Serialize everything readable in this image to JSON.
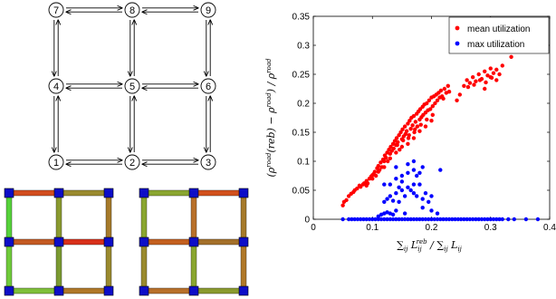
{
  "graph": {
    "nodes": [
      {
        "id": "1",
        "col": 0,
        "row": 2
      },
      {
        "id": "2",
        "col": 1,
        "row": 2
      },
      {
        "id": "3",
        "col": 2,
        "row": 2
      },
      {
        "id": "4",
        "col": 0,
        "row": 1
      },
      {
        "id": "5",
        "col": 1,
        "row": 1
      },
      {
        "id": "6",
        "col": 2,
        "row": 1
      },
      {
        "id": "7",
        "col": 0,
        "row": 0
      },
      {
        "id": "8",
        "col": 1,
        "row": 0
      },
      {
        "id": "9",
        "col": 2,
        "row": 0
      }
    ],
    "edges": [
      [
        "1",
        "2"
      ],
      [
        "2",
        "3"
      ],
      [
        "4",
        "5"
      ],
      [
        "5",
        "6"
      ],
      [
        "7",
        "8"
      ],
      [
        "8",
        "9"
      ],
      [
        "1",
        "4"
      ],
      [
        "4",
        "7"
      ],
      [
        "2",
        "5"
      ],
      [
        "5",
        "8"
      ],
      [
        "3",
        "6"
      ],
      [
        "6",
        "9"
      ]
    ]
  },
  "heatmaps": [
    {
      "h_edges": [
        [
          "#d24d1e",
          "#9a8a2e"
        ],
        [
          "#c45a22",
          "#d8301a"
        ],
        [
          "#7fbf3a",
          "#b07828"
        ]
      ],
      "v_edges": [
        [
          "#55d23a",
          "#8a9a2e",
          "#a67a2a"
        ],
        [
          "#6fcb3a",
          "#7a9a30",
          "#9a8a2e"
        ]
      ],
      "node_color": "#0d0dc8"
    },
    {
      "h_edges": [
        [
          "#8aa630",
          "#d2501c"
        ],
        [
          "#c4601f",
          "#a4702a"
        ],
        [
          "#b8702a",
          "#8a9a2e"
        ]
      ],
      "v_edges": [
        [
          "#8aa630",
          "#b8702a",
          "#a67a2a"
        ],
        [
          "#9a8a2e",
          "#8aa630",
          "#b07828"
        ]
      ],
      "node_color": "#0d0dc8"
    }
  ],
  "chart_data": {
    "type": "scatter",
    "xlim": [
      0,
      0.4
    ],
    "ylim": [
      0,
      0.35
    ],
    "x_ticks": [
      "0",
      "0.1",
      "0.2",
      "0.3",
      "0.4"
    ],
    "y_ticks": [
      "0",
      "0.05",
      "0.1",
      "0.15",
      "0.2",
      "0.25",
      "0.3",
      "0.35"
    ],
    "x_tick_values": [
      0,
      0.1,
      0.2,
      0.3,
      0.4
    ],
    "y_tick_values": [
      0,
      0.05,
      0.1,
      0.15,
      0.2,
      0.25,
      0.3,
      0.35
    ],
    "xlabel": "∑ij Lij^reb / ∑ij Lij",
    "ylabel": "(ρ^road(reb) − ρ^road) / ρ^road",
    "legend_position": "top-right",
    "grid": false,
    "series": [
      {
        "name": "mean utilization",
        "color": "#ff0000",
        "points": [
          [
            0.05,
            0.024
          ],
          [
            0.052,
            0.03
          ],
          [
            0.056,
            0.033
          ],
          [
            0.06,
            0.04
          ],
          [
            0.064,
            0.044
          ],
          [
            0.068,
            0.047
          ],
          [
            0.07,
            0.05
          ],
          [
            0.074,
            0.053
          ],
          [
            0.078,
            0.058
          ],
          [
            0.08,
            0.056
          ],
          [
            0.084,
            0.06
          ],
          [
            0.086,
            0.062
          ],
          [
            0.09,
            0.066
          ],
          [
            0.092,
            0.062
          ],
          [
            0.095,
            0.07
          ],
          [
            0.098,
            0.074
          ],
          [
            0.1,
            0.07
          ],
          [
            0.102,
            0.078
          ],
          [
            0.104,
            0.082
          ],
          [
            0.106,
            0.075
          ],
          [
            0.108,
            0.088
          ],
          [
            0.11,
            0.092
          ],
          [
            0.112,
            0.085
          ],
          [
            0.114,
            0.098
          ],
          [
            0.116,
            0.09
          ],
          [
            0.118,
            0.103
          ],
          [
            0.12,
            0.1
          ],
          [
            0.121,
            0.11
          ],
          [
            0.123,
            0.106
          ],
          [
            0.125,
            0.115
          ],
          [
            0.126,
            0.1
          ],
          [
            0.128,
            0.12
          ],
          [
            0.13,
            0.113
          ],
          [
            0.131,
            0.125
          ],
          [
            0.133,
            0.118
          ],
          [
            0.135,
            0.13
          ],
          [
            0.136,
            0.122
          ],
          [
            0.138,
            0.135
          ],
          [
            0.14,
            0.128
          ],
          [
            0.141,
            0.14
          ],
          [
            0.143,
            0.133
          ],
          [
            0.145,
            0.145
          ],
          [
            0.146,
            0.12
          ],
          [
            0.148,
            0.15
          ],
          [
            0.15,
            0.138
          ],
          [
            0.151,
            0.155
          ],
          [
            0.153,
            0.143
          ],
          [
            0.155,
            0.16
          ],
          [
            0.156,
            0.147
          ],
          [
            0.158,
            0.152
          ],
          [
            0.16,
            0.165
          ],
          [
            0.161,
            0.14
          ],
          [
            0.163,
            0.17
          ],
          [
            0.165,
            0.156
          ],
          [
            0.166,
            0.175
          ],
          [
            0.168,
            0.162
          ],
          [
            0.17,
            0.178
          ],
          [
            0.171,
            0.15
          ],
          [
            0.173,
            0.168
          ],
          [
            0.175,
            0.182
          ],
          [
            0.176,
            0.16
          ],
          [
            0.178,
            0.186
          ],
          [
            0.18,
            0.172
          ],
          [
            0.181,
            0.19
          ],
          [
            0.183,
            0.176
          ],
          [
            0.185,
            0.194
          ],
          [
            0.186,
            0.18
          ],
          [
            0.188,
            0.198
          ],
          [
            0.19,
            0.184
          ],
          [
            0.192,
            0.2
          ],
          [
            0.194,
            0.188
          ],
          [
            0.196,
            0.205
          ],
          [
            0.198,
            0.19
          ],
          [
            0.2,
            0.21
          ],
          [
            0.202,
            0.195
          ],
          [
            0.204,
            0.212
          ],
          [
            0.206,
            0.2
          ],
          [
            0.208,
            0.215
          ],
          [
            0.21,
            0.205
          ],
          [
            0.212,
            0.218
          ],
          [
            0.214,
            0.21
          ],
          [
            0.216,
            0.222
          ],
          [
            0.218,
            0.212
          ],
          [
            0.22,
            0.208
          ],
          [
            0.222,
            0.225
          ],
          [
            0.225,
            0.218
          ],
          [
            0.228,
            0.23
          ],
          [
            0.23,
            0.22
          ],
          [
            0.12,
            0.09
          ],
          [
            0.13,
            0.105
          ],
          [
            0.14,
            0.115
          ],
          [
            0.15,
            0.125
          ],
          [
            0.16,
            0.13
          ],
          [
            0.17,
            0.14
          ],
          [
            0.18,
            0.152
          ],
          [
            0.19,
            0.16
          ],
          [
            0.2,
            0.17
          ],
          [
            0.11,
            0.082
          ],
          [
            0.1,
            0.076
          ],
          [
            0.09,
            0.058
          ],
          [
            0.142,
            0.128
          ],
          [
            0.152,
            0.136
          ],
          [
            0.162,
            0.145
          ],
          [
            0.172,
            0.155
          ],
          [
            0.182,
            0.163
          ],
          [
            0.192,
            0.172
          ],
          [
            0.202,
            0.18
          ],
          [
            0.255,
            0.23
          ],
          [
            0.26,
            0.24
          ],
          [
            0.265,
            0.235
          ],
          [
            0.27,
            0.245
          ],
          [
            0.275,
            0.238
          ],
          [
            0.28,
            0.25
          ],
          [
            0.285,
            0.242
          ],
          [
            0.29,
            0.255
          ],
          [
            0.295,
            0.248
          ],
          [
            0.3,
            0.26
          ],
          [
            0.305,
            0.252
          ],
          [
            0.31,
            0.258
          ],
          [
            0.262,
            0.228
          ],
          [
            0.272,
            0.232
          ],
          [
            0.282,
            0.24
          ],
          [
            0.292,
            0.236
          ],
          [
            0.302,
            0.244
          ],
          [
            0.31,
            0.24
          ],
          [
            0.3,
            0.245
          ],
          [
            0.243,
            0.205
          ],
          [
            0.248,
            0.215
          ],
          [
            0.29,
            0.225
          ],
          [
            0.335,
            0.28
          ],
          [
            0.315,
            0.25
          ],
          [
            0.32,
            0.265
          ]
        ]
      },
      {
        "name": "max utilization",
        "color": "#0000ff",
        "points": [
          [
            0.05,
            0
          ],
          [
            0.06,
            0
          ],
          [
            0.07,
            0
          ],
          [
            0.08,
            0
          ],
          [
            0.09,
            0
          ],
          [
            0.1,
            0
          ],
          [
            0.11,
            0
          ],
          [
            0.12,
            0
          ],
          [
            0.13,
            0
          ],
          [
            0.14,
            0
          ],
          [
            0.15,
            0
          ],
          [
            0.16,
            0
          ],
          [
            0.17,
            0
          ],
          [
            0.18,
            0
          ],
          [
            0.19,
            0
          ],
          [
            0.2,
            0
          ],
          [
            0.21,
            0
          ],
          [
            0.22,
            0
          ],
          [
            0.23,
            0
          ],
          [
            0.24,
            0
          ],
          [
            0.25,
            0
          ],
          [
            0.26,
            0
          ],
          [
            0.27,
            0
          ],
          [
            0.28,
            0
          ],
          [
            0.29,
            0
          ],
          [
            0.3,
            0
          ],
          [
            0.31,
            0
          ],
          [
            0.32,
            0
          ],
          [
            0.33,
            0
          ],
          [
            0.34,
            0
          ],
          [
            0.36,
            0
          ],
          [
            0.38,
            0
          ],
          [
            0.065,
            0
          ],
          [
            0.075,
            0
          ],
          [
            0.085,
            0
          ],
          [
            0.095,
            0
          ],
          [
            0.105,
            0
          ],
          [
            0.115,
            0
          ],
          [
            0.125,
            0
          ],
          [
            0.135,
            0
          ],
          [
            0.145,
            0
          ],
          [
            0.155,
            0
          ],
          [
            0.165,
            0
          ],
          [
            0.175,
            0
          ],
          [
            0.185,
            0
          ],
          [
            0.195,
            0
          ],
          [
            0.205,
            0
          ],
          [
            0.215,
            0
          ],
          [
            0.225,
            0
          ],
          [
            0.235,
            0
          ],
          [
            0.245,
            0
          ],
          [
            0.255,
            0
          ],
          [
            0.265,
            0
          ],
          [
            0.275,
            0
          ],
          [
            0.285,
            0
          ],
          [
            0.295,
            0
          ],
          [
            0.305,
            0
          ],
          [
            0.315,
            0
          ],
          [
            0.11,
            0.005
          ],
          [
            0.115,
            0.008
          ],
          [
            0.12,
            0.01
          ],
          [
            0.125,
            0.012
          ],
          [
            0.13,
            0.01
          ],
          [
            0.135,
            0.008
          ],
          [
            0.12,
            0.03
          ],
          [
            0.125,
            0.035
          ],
          [
            0.13,
            0.04
          ],
          [
            0.135,
            0.032
          ],
          [
            0.14,
            0.045
          ],
          [
            0.145,
            0.03
          ],
          [
            0.15,
            0.05
          ],
          [
            0.155,
            0.04
          ],
          [
            0.16,
            0.055
          ],
          [
            0.165,
            0.05
          ],
          [
            0.17,
            0.045
          ],
          [
            0.175,
            0.04
          ],
          [
            0.18,
            0.06
          ],
          [
            0.185,
            0.035
          ],
          [
            0.19,
            0.045
          ],
          [
            0.195,
            0.03
          ],
          [
            0.2,
            0.04
          ],
          [
            0.13,
            0.06
          ],
          [
            0.14,
            0.07
          ],
          [
            0.15,
            0.075
          ],
          [
            0.16,
            0.08
          ],
          [
            0.17,
            0.085
          ],
          [
            0.175,
            0.075
          ],
          [
            0.18,
            0.08
          ],
          [
            0.185,
            0.09
          ],
          [
            0.215,
            0.085
          ],
          [
            0.14,
            0.09
          ],
          [
            0.12,
            0.06
          ],
          [
            0.16,
            0.095
          ],
          [
            0.17,
            0.06
          ],
          [
            0.15,
            0.065
          ],
          [
            0.145,
            0.055
          ],
          [
            0.2,
            0.015
          ],
          [
            0.21,
            0.01
          ],
          [
            0.14,
            0.015
          ],
          [
            0.155,
            0.01
          ],
          [
            0.185,
            0.02
          ],
          [
            0.17,
            0.1
          ]
        ]
      }
    ]
  }
}
